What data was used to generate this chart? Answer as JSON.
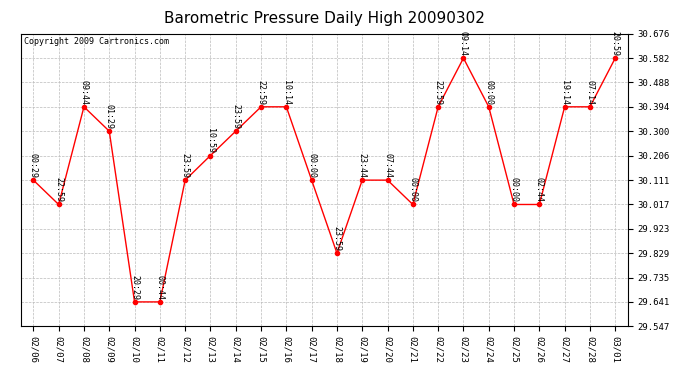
{
  "title": "Barometric Pressure Daily High 20090302",
  "copyright": "Copyright 2009 Cartronics.com",
  "dates": [
    "02/06",
    "02/07",
    "02/08",
    "02/09",
    "02/10",
    "02/11",
    "02/12",
    "02/13",
    "02/14",
    "02/15",
    "02/16",
    "02/17",
    "02/18",
    "02/19",
    "02/20",
    "02/21",
    "02/22",
    "02/23",
    "02/24",
    "02/25",
    "02/26",
    "02/27",
    "02/28",
    "03/01"
  ],
  "values": [
    30.111,
    30.017,
    30.394,
    30.3,
    29.641,
    29.641,
    30.111,
    30.206,
    30.3,
    30.394,
    30.394,
    30.111,
    29.829,
    30.111,
    30.111,
    30.017,
    30.394,
    30.582,
    30.394,
    30.017,
    30.017,
    30.394,
    30.394,
    30.582
  ],
  "annotations": [
    "00:29",
    "22:59",
    "09:44",
    "01:29",
    "20:29",
    "00:44",
    "23:59",
    "10:59",
    "23:59",
    "22:59",
    "10:14",
    "00:00",
    "23:59",
    "23:44",
    "07:44",
    "00:00",
    "22:59",
    "09:14",
    "00:00",
    "00:00",
    "02:44",
    "19:14",
    "07:14",
    "20:59"
  ],
  "ylim_min": 29.547,
  "ylim_max": 30.676,
  "yticks": [
    29.547,
    29.641,
    29.735,
    29.829,
    29.923,
    30.017,
    30.111,
    30.206,
    30.3,
    30.394,
    30.488,
    30.582,
    30.676
  ],
  "line_color": "red",
  "marker_color": "red",
  "bg_color": "white",
  "grid_color": "#bbbbbb",
  "title_fontsize": 11,
  "annotation_fontsize": 6,
  "copyright_fontsize": 6
}
